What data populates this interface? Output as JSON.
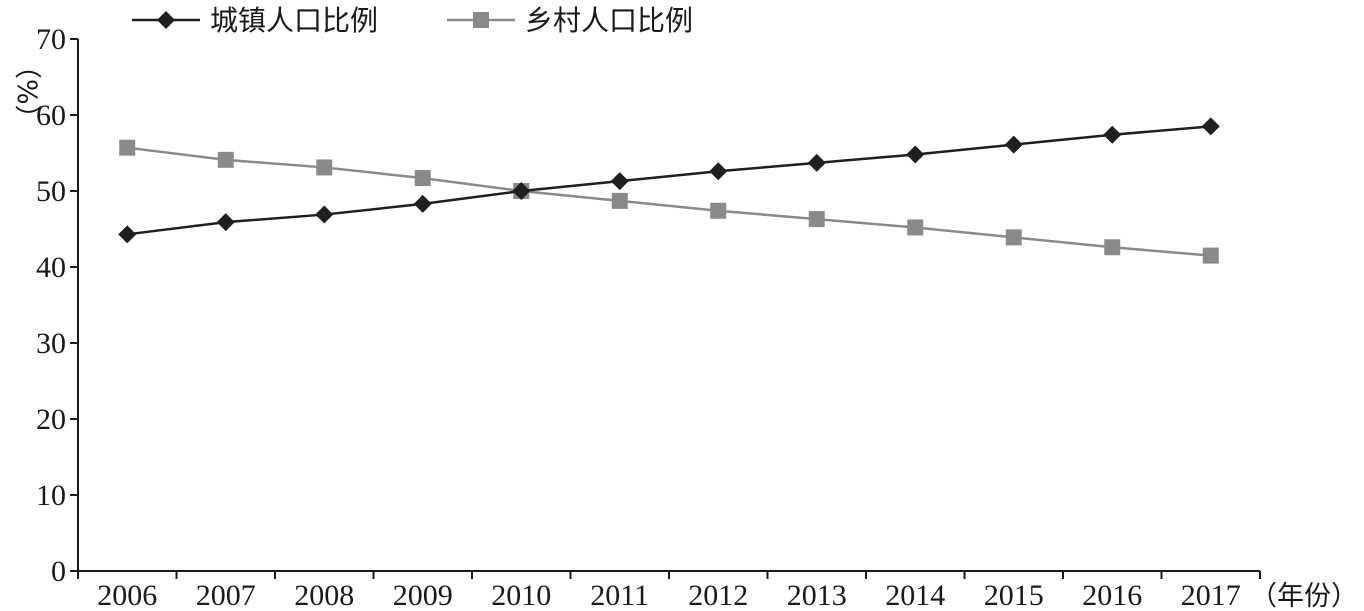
{
  "chart_data": {
    "type": "line",
    "categories": [
      "2006",
      "2007",
      "2008",
      "2009",
      "2010",
      "2011",
      "2012",
      "2013",
      "2014",
      "2015",
      "2016",
      "2017"
    ],
    "series": [
      {
        "name": "城镇人口比例",
        "color": "#1f1f1f",
        "marker": "diamond",
        "values": [
          44.3,
          45.9,
          46.9,
          48.3,
          50.0,
          51.3,
          52.6,
          53.7,
          54.8,
          56.1,
          57.4,
          58.5
        ]
      },
      {
        "name": "乡村人口比例",
        "color": "#8a8a8a",
        "marker": "square",
        "values": [
          55.7,
          54.1,
          53.1,
          51.7,
          50.0,
          48.7,
          47.4,
          46.3,
          45.2,
          43.9,
          42.6,
          41.5
        ]
      }
    ],
    "ylabel": "（%）",
    "xlabel": "（年份）",
    "ylim": [
      0,
      70
    ],
    "yticks": [
      0,
      10,
      20,
      30,
      40,
      50,
      60,
      70
    ],
    "grid": false,
    "legend_position": "top-left"
  }
}
